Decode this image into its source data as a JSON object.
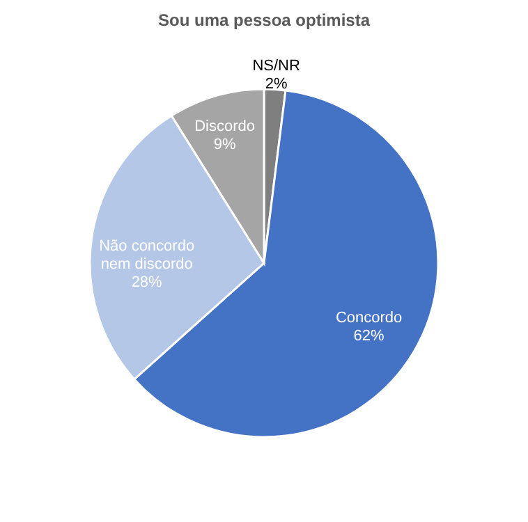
{
  "chart_data": {
    "type": "pie",
    "title": "Sou uma pessoa optimista",
    "categories": [
      "NS/NR",
      "Concordo",
      "Não concordo nem discordo",
      "Discordo"
    ],
    "values": [
      2,
      62,
      28,
      9
    ],
    "colors": [
      "#7f7f7f",
      "#4472c4",
      "#b4c7e7",
      "#a5a5a5"
    ],
    "value_labels": [
      "2%",
      "62%",
      "28%",
      "9%"
    ],
    "legend": false
  }
}
